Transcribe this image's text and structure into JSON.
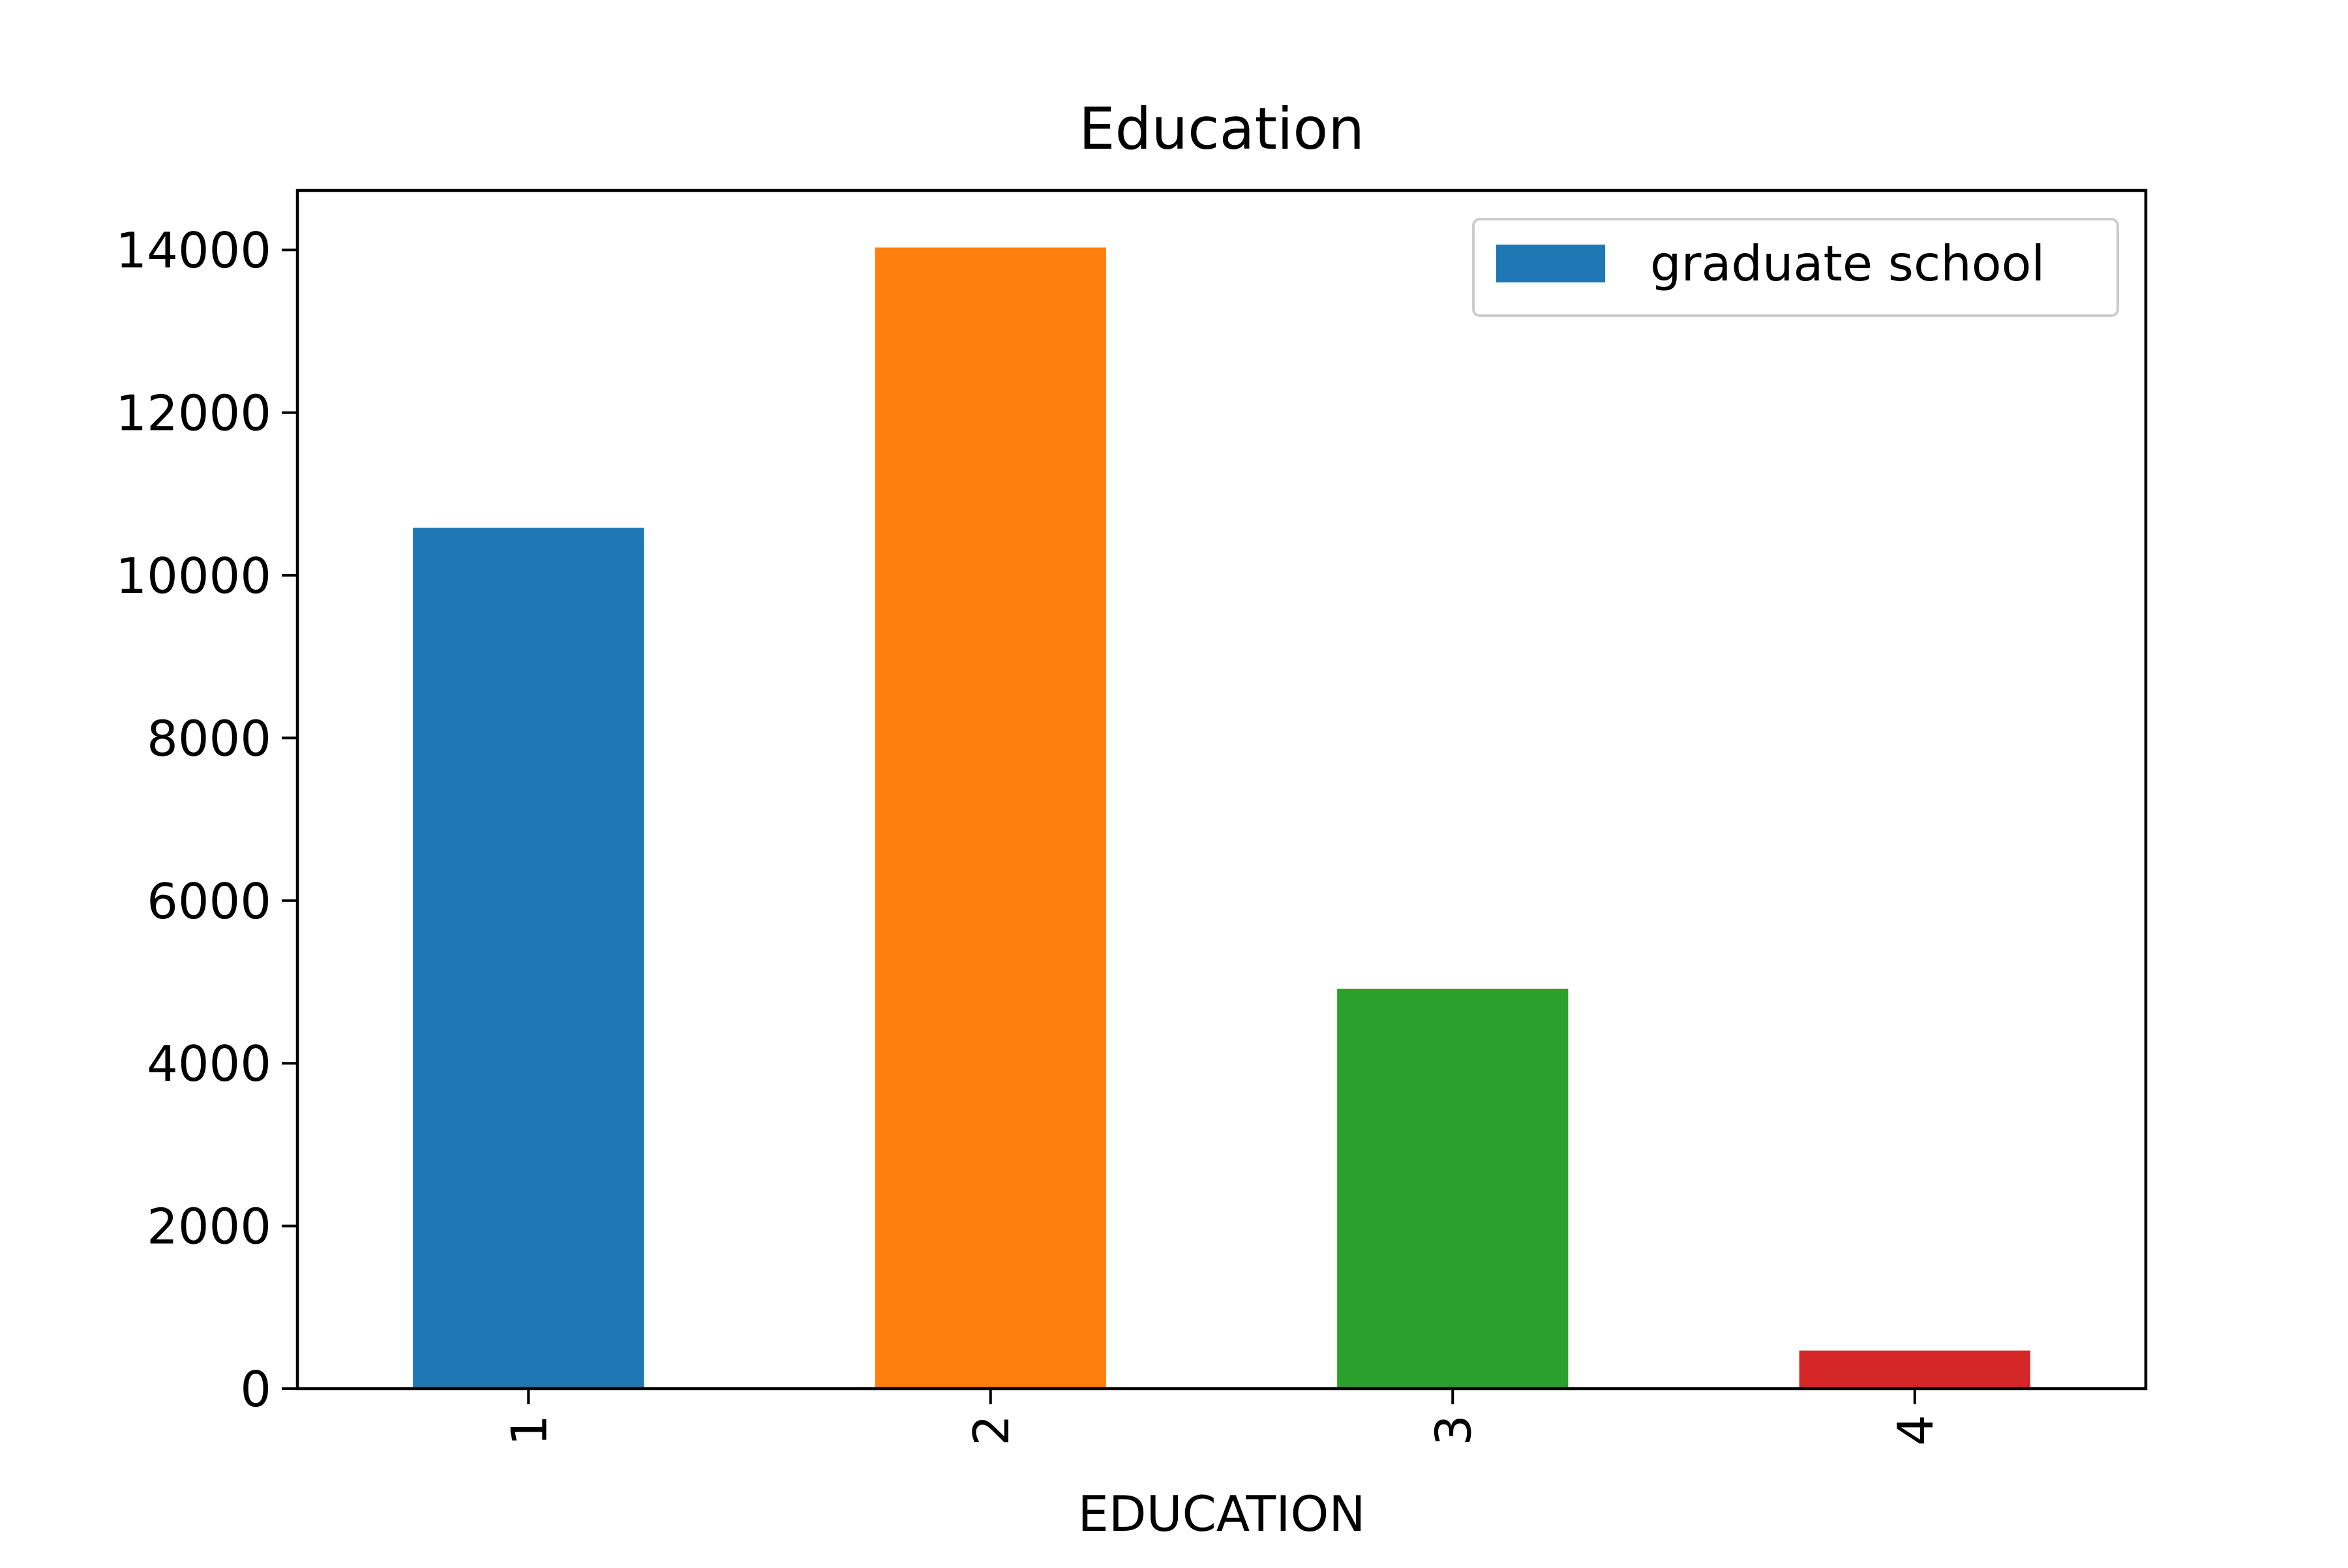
{
  "chart_data": {
    "type": "bar",
    "title": "Education",
    "xlabel": "EDUCATION",
    "ylabel": "",
    "categories": [
      "1",
      "2",
      "3",
      "4"
    ],
    "values": [
      10585,
      14030,
      4917,
      468
    ],
    "bar_colors": [
      "#1f77b4",
      "#ff7f0e",
      "#2ca02c",
      "#d62728"
    ],
    "ylim": [
      0,
      14731.5
    ],
    "yticks": [
      0,
      2000,
      4000,
      6000,
      8000,
      10000,
      12000,
      14000
    ],
    "ytick_labels": [
      "0",
      "2000",
      "4000",
      "6000",
      "8000",
      "10000",
      "12000",
      "14000"
    ],
    "xtick_rotation": "vertical",
    "legend": {
      "entries": [
        {
          "label": "graduate school",
          "color": "#1f77b4"
        }
      ],
      "placement": "upper right"
    },
    "grid": false
  }
}
